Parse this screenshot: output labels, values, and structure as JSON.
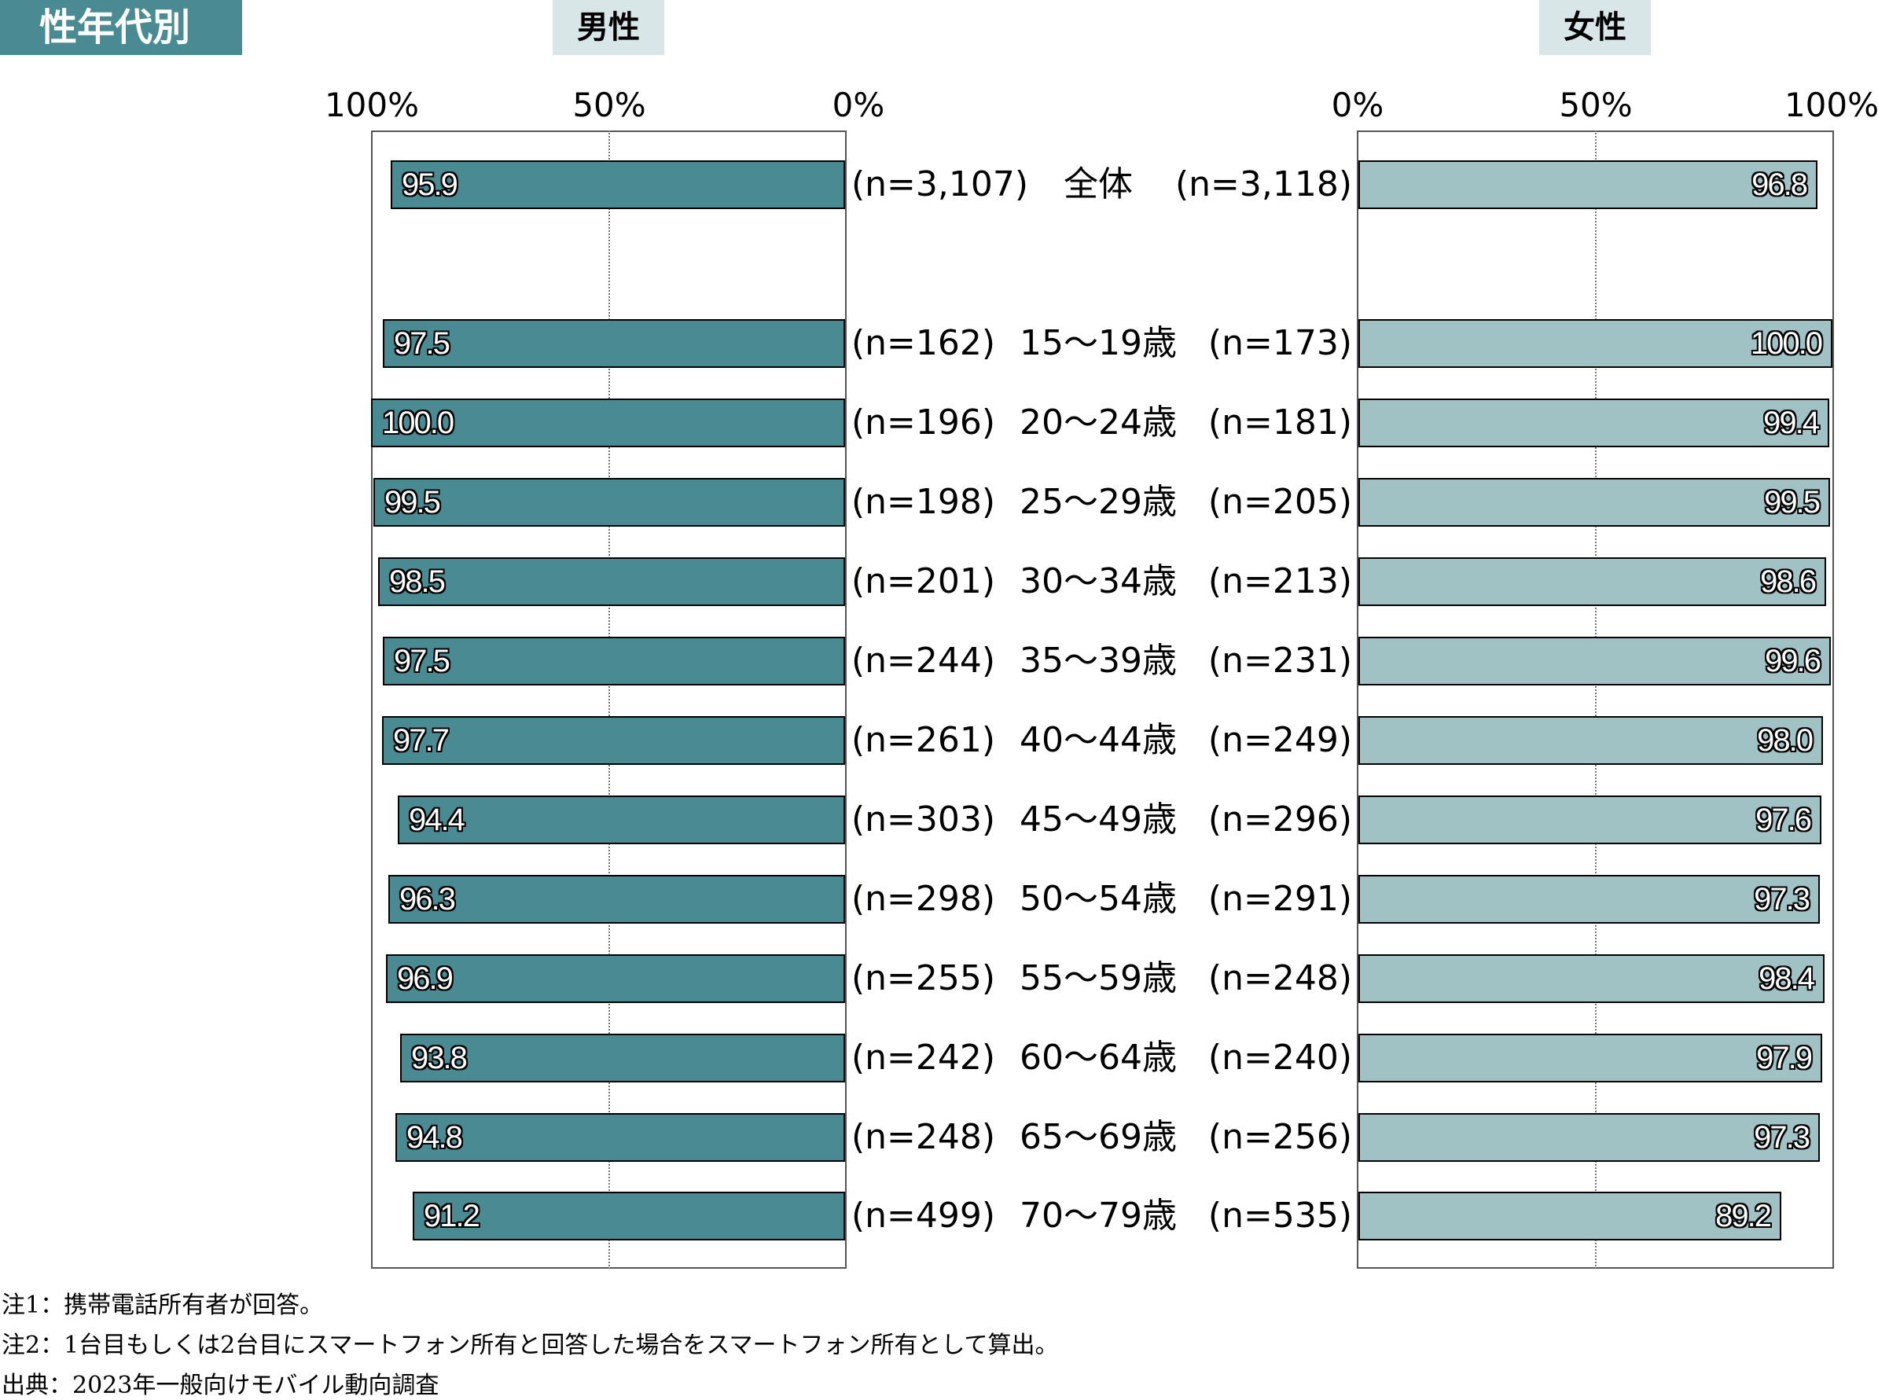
{
  "section_title": "性年代別",
  "chart_data": {
    "type": "bar",
    "orientation": "horizontal-butterfly",
    "xlim": [
      0,
      100
    ],
    "male": {
      "label": "男性",
      "axis_ticks": [
        "100%",
        "50%",
        "0%"
      ],
      "color": "#4a8b93"
    },
    "female": {
      "label": "女性",
      "axis_ticks": [
        "0%",
        "50%",
        "100%"
      ],
      "color": "#a0c2c5"
    },
    "rows": [
      {
        "category": "全体",
        "male_n": "(n=3,107)",
        "male": 95.9,
        "female_n": "(n=3,118)",
        "female": 96.8
      },
      {
        "category": "15〜19歳",
        "male_n": "(n=162)",
        "male": 97.5,
        "female_n": "(n=173)",
        "female": 100.0
      },
      {
        "category": "20〜24歳",
        "male_n": "(n=196)",
        "male": 100.0,
        "female_n": "(n=181)",
        "female": 99.4
      },
      {
        "category": "25〜29歳",
        "male_n": "(n=198)",
        "male": 99.5,
        "female_n": "(n=205)",
        "female": 99.5
      },
      {
        "category": "30〜34歳",
        "male_n": "(n=201)",
        "male": 98.5,
        "female_n": "(n=213)",
        "female": 98.6
      },
      {
        "category": "35〜39歳",
        "male_n": "(n=244)",
        "male": 97.5,
        "female_n": "(n=231)",
        "female": 99.6
      },
      {
        "category": "40〜44歳",
        "male_n": "(n=261)",
        "male": 97.7,
        "female_n": "(n=249)",
        "female": 98.0
      },
      {
        "category": "45〜49歳",
        "male_n": "(n=303)",
        "male": 94.4,
        "female_n": "(n=296)",
        "female": 97.6
      },
      {
        "category": "50〜54歳",
        "male_n": "(n=298)",
        "male": 96.3,
        "female_n": "(n=291)",
        "female": 97.3
      },
      {
        "category": "55〜59歳",
        "male_n": "(n=255)",
        "male": 96.9,
        "female_n": "(n=248)",
        "female": 98.4
      },
      {
        "category": "60〜64歳",
        "male_n": "(n=242)",
        "male": 93.8,
        "female_n": "(n=240)",
        "female": 97.9
      },
      {
        "category": "65〜69歳",
        "male_n": "(n=248)",
        "male": 94.8,
        "female_n": "(n=256)",
        "female": 97.3
      },
      {
        "category": "70〜79歳",
        "male_n": "(n=499)",
        "male": 91.2,
        "female_n": "(n=535)",
        "female": 89.2
      }
    ]
  },
  "notes": [
    "注1：携帯電話所有者が回答。",
    "注2：1台目もしくは2台目にスマートフォン所有と回答した場合をスマートフォン所有として算出。",
    "出典：2023年一般向けモバイル動向調査"
  ]
}
